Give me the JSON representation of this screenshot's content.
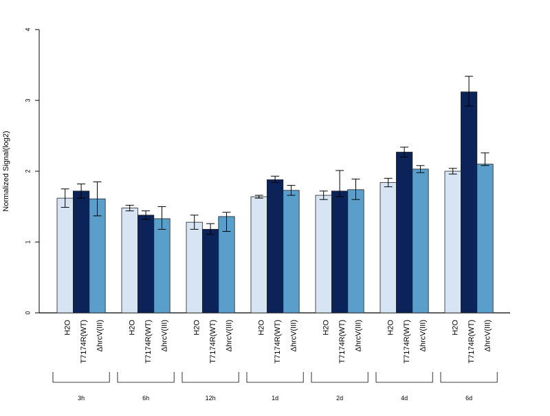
{
  "chart_data": {
    "type": "bar",
    "title": "",
    "ylabel": "Normalized Signal(log2)",
    "xlabel": "",
    "ylim": [
      0,
      4
    ],
    "yticks": [
      0,
      1,
      2,
      3,
      4
    ],
    "grid": false,
    "categories": [
      "3h",
      "6h",
      "12h",
      "1d",
      "2d",
      "4d",
      "6d"
    ],
    "series": [
      {
        "name": "H2O",
        "color": "#d6e4f4",
        "values": [
          1.62,
          1.48,
          1.28,
          1.64,
          1.66,
          1.84,
          2.0
        ],
        "err_low": [
          1.49,
          1.44,
          1.18,
          1.62,
          1.6,
          1.78,
          1.96
        ],
        "err_high": [
          1.75,
          1.52,
          1.38,
          1.66,
          1.72,
          1.9,
          2.04
        ]
      },
      {
        "name": "T7174R(WT)",
        "color": "#0b2358",
        "values": [
          1.72,
          1.38,
          1.18,
          1.88,
          1.72,
          2.27,
          3.12
        ],
        "err_low": [
          1.62,
          1.32,
          1.11,
          1.84,
          1.64,
          2.2,
          2.92
        ],
        "err_high": [
          1.82,
          1.44,
          1.26,
          1.93,
          2.01,
          2.34,
          3.34
        ]
      },
      {
        "name": "ΔhrcV(III)",
        "color": "#5a9ecb",
        "values": [
          1.61,
          1.33,
          1.36,
          1.73,
          1.74,
          2.03,
          2.1
        ],
        "err_low": [
          1.37,
          1.18,
          1.15,
          1.66,
          1.6,
          1.98,
          2.08
        ],
        "err_high": [
          1.85,
          1.5,
          1.42,
          1.8,
          1.89,
          2.08,
          2.26
        ]
      }
    ]
  }
}
